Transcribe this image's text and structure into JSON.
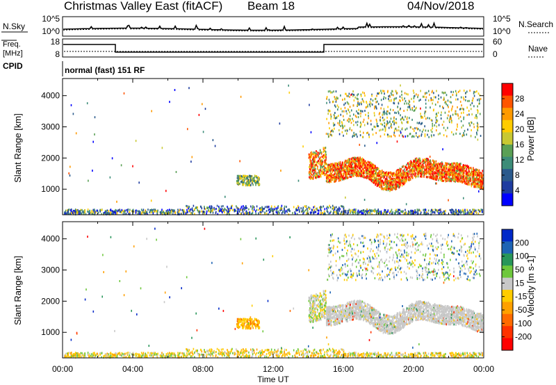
{
  "header": {
    "station": "Christmas Valley East (fitACF)",
    "beam": "Beam 18",
    "date": "04/Nov/2018"
  },
  "strip": {
    "nsky_label": "N.Sky",
    "nsky_ticks": [
      "10^5",
      "10^0"
    ],
    "nsearch_label": "N.Search",
    "nsearch_ticks": [
      "10^5",
      "10^0"
    ],
    "freq_label_1": "Freq.",
    "freq_label_2": "[MHz]",
    "freq_ticks": [
      "18",
      "8"
    ],
    "nave_label": "Nave",
    "nave_ticks": [
      "60",
      "0"
    ],
    "cpid_label": "CPID",
    "cpid_text": "normal (fast) 151 RF"
  },
  "x_axis": {
    "label": "Time UT",
    "ticks": [
      "00:00",
      "04:00",
      "08:00",
      "12:00",
      "16:00",
      "20:00",
      "00:00"
    ]
  },
  "chart_data": [
    {
      "type": "heatmap",
      "panel": "power",
      "x_range_hours": [
        0,
        24
      ],
      "ylabel": "Slant Range [km]",
      "yticks": [
        1000,
        2000,
        3000,
        4000
      ],
      "ylim": [
        180,
        4550
      ],
      "colorbar": {
        "label": "Power [dB]",
        "ticks": [
          "28",
          "24",
          "20",
          "16",
          "12",
          "8",
          "4"
        ],
        "colors": [
          "#ff0000",
          "#ff5500",
          "#ff9a00",
          "#ffcc00",
          "#c8c832",
          "#5aa055",
          "#3c8c78",
          "#2a5a8c",
          "#1e3ca0",
          "#0000ff"
        ]
      },
      "series": [
        {
          "name": "ground scatter band",
          "x": [
            0.0,
            24.0
          ],
          "y": [
            180,
            430
          ]
        },
        {
          "name": "morning patch",
          "x": [
            9.9,
            11.2
          ],
          "y": [
            1150,
            1450
          ]
        },
        {
          "name": "main echo band",
          "x": [
            14.9,
            24.0
          ],
          "y": [
            1350,
            2200
          ]
        },
        {
          "name": "upper echo arcs",
          "x": [
            15.0,
            23.8
          ],
          "y": [
            2700,
            4200
          ]
        }
      ]
    },
    {
      "type": "heatmap",
      "panel": "velocity",
      "x_range_hours": [
        0,
        24
      ],
      "ylabel": "Slant Range [km]",
      "yticks": [
        1000,
        2000,
        3000,
        4000
      ],
      "ylim": [
        180,
        4550
      ],
      "colorbar": {
        "label": "Velocity [m s-1]",
        "ticks": [
          "200",
          "100",
          "50",
          "15",
          "-15",
          "-50",
          "-100",
          "-200"
        ],
        "colors": [
          "#0028c8",
          "#1e64b4",
          "#28965a",
          "#6ec83c",
          "#c8c8c8",
          "#ffcc00",
          "#ffa000",
          "#ff6a00",
          "#ff3200",
          "#ff0000"
        ]
      },
      "series": [
        {
          "name": "ground scatter band",
          "x": [
            0.0,
            24.0
          ],
          "y": [
            180,
            430
          ]
        },
        {
          "name": "morning patch",
          "x": [
            9.9,
            11.2
          ],
          "y": [
            1150,
            1450
          ]
        },
        {
          "name": "main echo band",
          "x": [
            14.9,
            24.0
          ],
          "y": [
            1350,
            2200
          ]
        },
        {
          "name": "upper echo arcs",
          "x": [
            15.0,
            23.8
          ],
          "y": [
            2700,
            4200
          ]
        }
      ]
    }
  ]
}
